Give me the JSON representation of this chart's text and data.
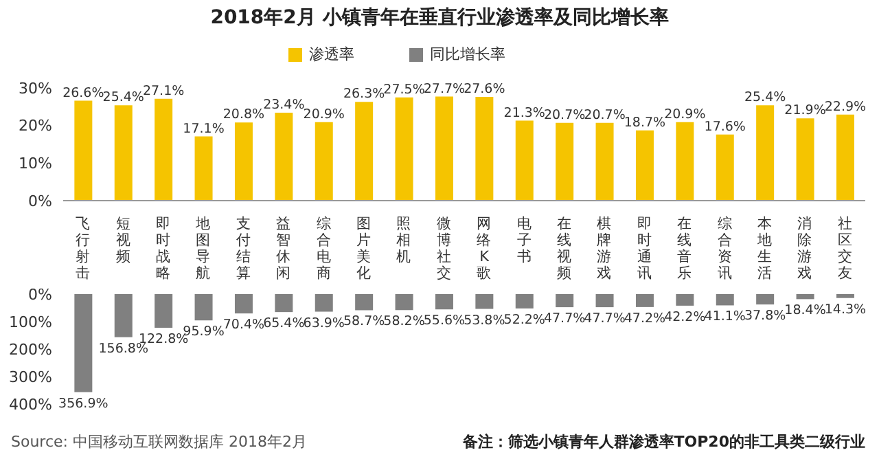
{
  "chart_data": [
    {
      "type": "bar",
      "title": "2018年2月 小镇青年在垂直行业渗透率及同比增长率",
      "legend": "top",
      "categories": [
        "飞行射击",
        "短视频",
        "即时战略",
        "地图导航",
        "支付结算",
        "益智休闲",
        "综合电商",
        "图片美化",
        "照相机",
        "微博社交",
        "网络K歌",
        "电子书",
        "在线视频",
        "棋牌游戏",
        "即时通讯",
        "在线音乐",
        "综合资讯",
        "本地生活",
        "消除游戏",
        "社区交友"
      ],
      "series": [
        {
          "name": "渗透率",
          "color": "#f5c400",
          "values": [
            26.6,
            25.4,
            27.1,
            17.1,
            20.8,
            23.4,
            20.9,
            26.3,
            27.5,
            27.7,
            27.6,
            21.3,
            20.7,
            20.7,
            18.7,
            20.9,
            17.6,
            25.4,
            21.9,
            22.9
          ],
          "value_labels": [
            "26.6%",
            "25.4%",
            "27.1%",
            "17.1%",
            "20.8%",
            "23.4%",
            "20.9%",
            "26.3%",
            "27.5%",
            "27.7%",
            "27.6%",
            "21.3%",
            "20.7%",
            "20.7%",
            "18.7%",
            "20.9%",
            "17.6%",
            "25.4%",
            "21.9%",
            "22.9%"
          ]
        }
      ],
      "ylim": [
        0,
        30
      ],
      "yticks": [
        {
          "value": 0,
          "label": "0%"
        },
        {
          "value": 10,
          "label": "10%"
        },
        {
          "value": 20,
          "label": "20%"
        },
        {
          "value": 30,
          "label": "30%"
        }
      ]
    },
    {
      "type": "bar",
      "legend": "top",
      "tick_labels": "y",
      "categories": [
        "飞行射击",
        "短视频",
        "即时战略",
        "地图导航",
        "支付结算",
        "益智休闲",
        "综合电商",
        "图片美化",
        "照相机",
        "微博社交",
        "网络K歌",
        "电子书",
        "在线视频",
        "棋牌游戏",
        "即时通讯",
        "在线音乐",
        "综合资讯",
        "本地生活",
        "消除游戏",
        "社区交友"
      ],
      "series": [
        {
          "name": "同比增长率",
          "color": "#808080",
          "values": [
            356.9,
            156.8,
            122.8,
            95.9,
            70.4,
            65.4,
            63.9,
            58.7,
            58.2,
            55.6,
            53.8,
            52.2,
            47.7,
            47.7,
            47.2,
            42.2,
            41.1,
            37.8,
            18.4,
            14.3
          ],
          "value_labels": [
            "356.9%",
            "156.8%",
            "122.8%",
            "95.9%",
            "70.4%",
            "65.4%",
            "63.9%",
            "58.7%",
            "58.2%",
            "55.6%",
            "53.8%",
            "52.2%",
            "47.7%",
            "47.7%",
            "47.2%",
            "42.2%",
            "41.1%",
            "37.8%",
            "18.4%",
            "14.3%"
          ]
        }
      ],
      "ylim": [
        400,
        0
      ],
      "yticks": [
        {
          "value": 0,
          "label": "0%"
        },
        {
          "value": 100,
          "label": "100%"
        },
        {
          "value": 200,
          "label": "200%"
        },
        {
          "value": 300,
          "label": "300%"
        },
        {
          "value": 400,
          "label": "400%"
        }
      ],
      "annotations": [
        "Source:  中国移动互联网数据库 2018年2月",
        "备注：筛选小镇青年人群渗透率TOP20的非工具类二级行业"
      ]
    }
  ]
}
